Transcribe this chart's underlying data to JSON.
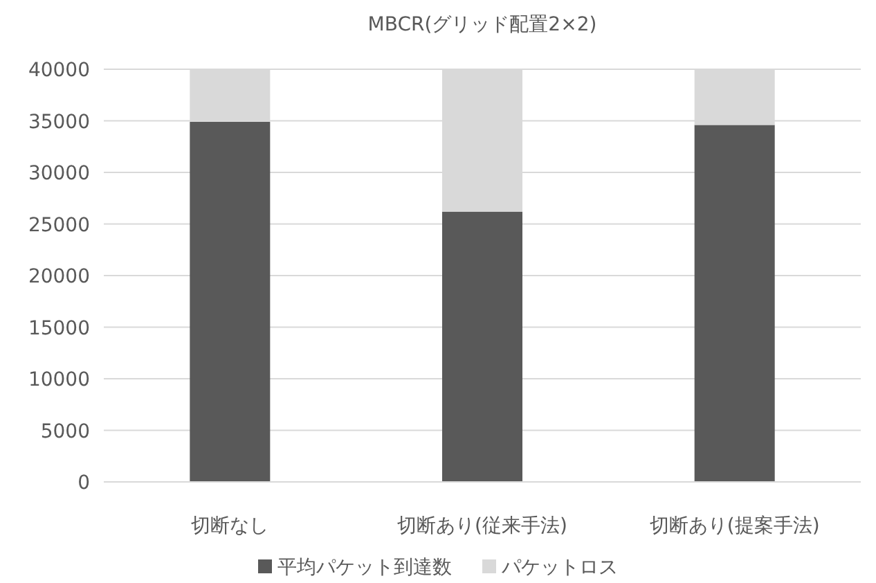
{
  "chart_data": {
    "type": "bar",
    "title": "MBCR(グリッド配置2×2)",
    "stacked": true,
    "categories": [
      "切断なし",
      "切断あり(従来手法)",
      "切断あり(提案手法)"
    ],
    "series": [
      {
        "name": "平均パケット到達数",
        "color": "#595959",
        "values": [
          34900,
          26200,
          34600
        ]
      },
      {
        "name": "パケットロス",
        "color": "#d9d9d9",
        "values": [
          5100,
          13800,
          5400
        ]
      }
    ],
    "ylim": [
      0,
      40000
    ],
    "yticks": [
      0,
      5000,
      10000,
      15000,
      20000,
      25000,
      30000,
      35000,
      40000
    ],
    "grid": "y",
    "legend": "bottom"
  }
}
